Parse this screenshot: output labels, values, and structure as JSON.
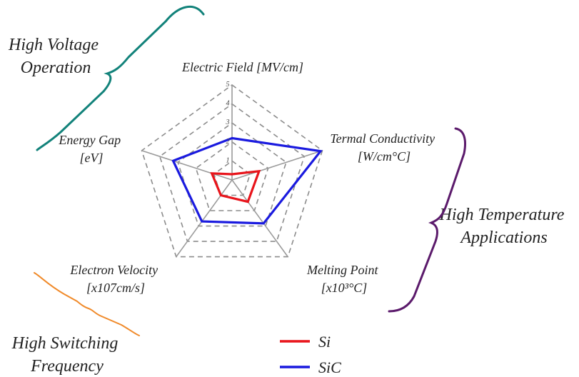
{
  "chart_data": {
    "type": "radar",
    "axes": [
      {
        "key": "electric_field",
        "label_lines": [
          "Electric Field [MV/cm]"
        ]
      },
      {
        "key": "thermal_conductivity",
        "label_lines": [
          "Termal Conductivity",
          "[W/cm°C]"
        ]
      },
      {
        "key": "melting_point",
        "label_lines": [
          "Melting Point",
          "[x10³°C]"
        ]
      },
      {
        "key": "electron_velocity",
        "label_lines": [
          "Electron Velocity",
          "[x107cm/s]"
        ]
      },
      {
        "key": "energy_gap",
        "label_lines": [
          "Energy Gap",
          "[eV]"
        ]
      }
    ],
    "rlim": [
      0,
      5
    ],
    "ticks": [
      "1",
      "2",
      "3",
      "4",
      "5"
    ],
    "series": [
      {
        "name": "Si",
        "color": "#e8141b",
        "values": [
          0.3,
          1.5,
          1.42,
          1.0,
          1.12
        ]
      },
      {
        "name": "SiC",
        "color": "#1a1adf",
        "values": [
          2.2,
          4.9,
          2.83,
          2.7,
          3.26
        ]
      }
    ],
    "grid": "dashed pentagons"
  },
  "annotations": [
    {
      "lines": [
        "High Voltage",
        "Operation"
      ],
      "color": "#12827a"
    },
    {
      "lines": [
        "High Temperature",
        "Applications"
      ],
      "color": "#5b1a6b"
    },
    {
      "lines": [
        "High Switching",
        "Frequency"
      ],
      "color": "#f08a2a"
    }
  ]
}
